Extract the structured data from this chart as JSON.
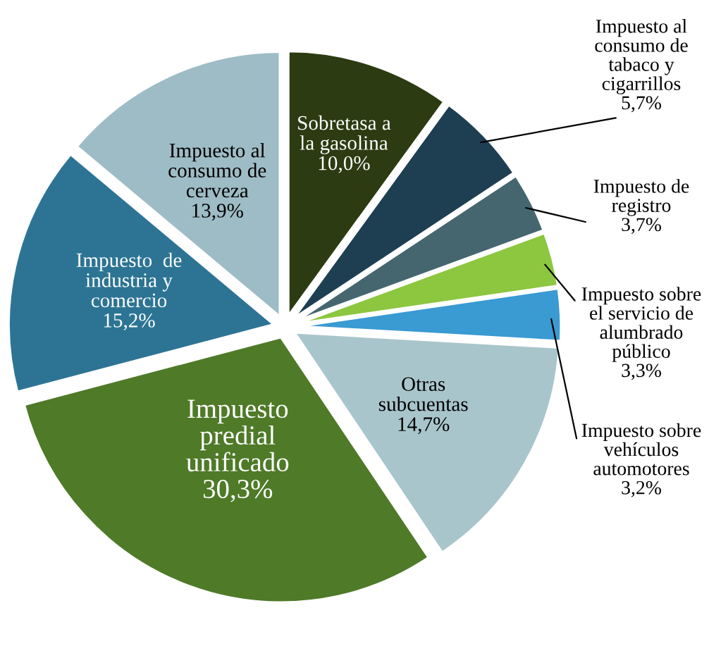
{
  "chart_data": {
    "type": "pie",
    "categories": [
      "Sobretasa a\nla gasolina",
      "Impuesto al\nconsumo de\ntabaco y\ncigarrillos",
      "Impuesto de\nregistro",
      "Impuesto sobre\nel servicio de\nalumbrado\npúblico",
      "Impuesto sobre\nvehículos\nautomotores",
      "Otras\nsubcuentas",
      "Impuesto\npredial\nunificado",
      "Impuesto  de\nindustria y\ncomercio",
      "Impuesto al\nconsumo de\ncerveza"
    ],
    "values": [
      10.0,
      5.7,
      3.7,
      3.3,
      3.2,
      14.7,
      30.3,
      15.2,
      13.9
    ],
    "value_labels": [
      "10,0%",
      "5,7%",
      "3,7%",
      "3,3%",
      "3,2%",
      "14,7%",
      "30,3%",
      "15,2%",
      "13,9%"
    ],
    "colors": [
      "#2c3b12",
      "#1e3e52",
      "#45666f",
      "#8dc63f",
      "#3a9ad2",
      "#a9c5cc",
      "#4f7a28",
      "#2d7494",
      "#9ebcc5"
    ],
    "legend": false
  }
}
